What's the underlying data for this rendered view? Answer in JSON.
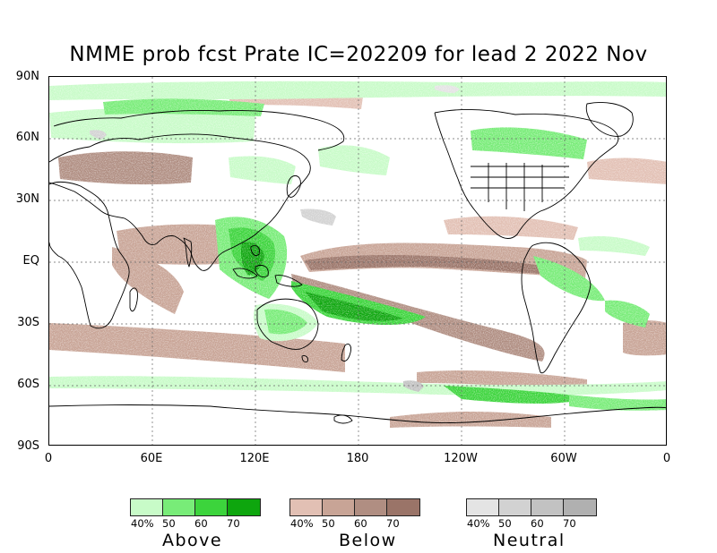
{
  "title": "NMME prob fcst Prate IC=202209 for lead 2 2022 Nov",
  "y_labels": [
    "90N",
    "60N",
    "30N",
    "EQ",
    "30S",
    "60S",
    "90S"
  ],
  "x_labels": [
    "0",
    "60E",
    "120E",
    "180",
    "120W",
    "60W",
    "0"
  ],
  "legends": [
    {
      "name": "Above",
      "ticks": [
        "40%",
        "50",
        "60",
        "70"
      ],
      "colors": [
        "#c8fbc8",
        "#78ec78",
        "#3cd43c",
        "#0ea60e"
      ]
    },
    {
      "name": "Below",
      "ticks": [
        "40%",
        "50",
        "60",
        "70"
      ],
      "colors": [
        "#e2c0b4",
        "#c8a496",
        "#b08e82",
        "#9a7468"
      ]
    },
    {
      "name": "Neutral",
      "ticks": [
        "40%",
        "50",
        "60",
        "70"
      ],
      "colors": [
        "#e4e4e4",
        "#d2d2d2",
        "#c2c2c2",
        "#b0b0b0"
      ]
    }
  ]
}
